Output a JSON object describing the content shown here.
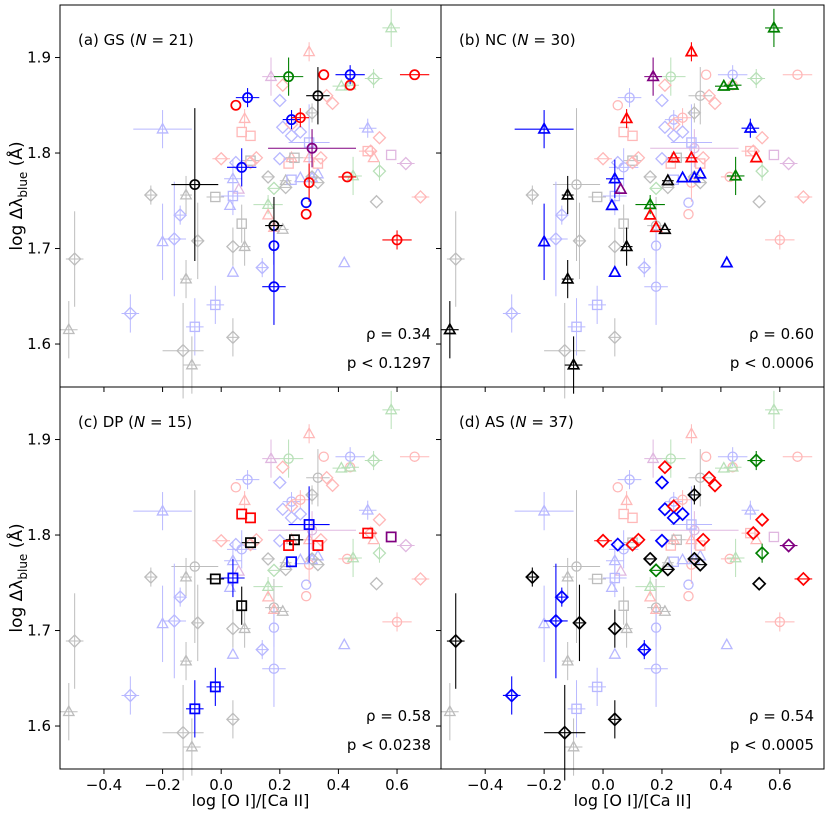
{
  "figure": {
    "xlabel": "log [O I]/[Ca II]",
    "ylabel_main": "log Δλ",
    "ylabel_sub": "blue",
    "ylabel_unit": "(Å)",
    "xlim": [
      -0.55,
      0.75
    ],
    "ylim": [
      1.555,
      1.955
    ],
    "xticks": [
      -0.4,
      -0.2,
      0.0,
      0.2,
      0.4,
      0.6
    ],
    "xtick_labels": [
      "−0.4",
      "−0.2",
      "0.0",
      "0.2",
      "0.4",
      "0.6"
    ],
    "yticks": [
      1.6,
      1.7,
      1.8,
      1.9
    ],
    "ytick_labels": [
      "1.6",
      "1.7",
      "1.8",
      "1.9"
    ],
    "colors": {
      "black": "#000000",
      "blue": "#0000ff",
      "red": "#ff0000",
      "green": "#008000",
      "purple": "#800080",
      "faded_gray": "#bdbdbd",
      "faded_blue": "#b8b8ff",
      "faded_red": "#ffb8b8",
      "faded_green": "#b8e0b8",
      "faded_purple": "#e0b8e0"
    }
  },
  "chart_data": [
    {
      "panel": "a",
      "type": "scatter",
      "title_prefix": "(a)  GS (",
      "N": "21",
      "marker": "circle",
      "rho_label": "ρ = 0.34",
      "p_label": "p < 0.1297",
      "points": [
        {
          "x": -0.09,
          "y": 1.767,
          "c": "black",
          "xe": 0.08,
          "ye": 0.08
        },
        {
          "x": 0.05,
          "y": 1.85,
          "c": "red",
          "xe": 0.0,
          "ye": 0.0
        },
        {
          "x": 0.09,
          "y": 1.858,
          "c": "blue",
          "xe": 0.04,
          "ye": 0.01
        },
        {
          "x": 0.07,
          "y": 1.785,
          "c": "blue",
          "xe": 0.05,
          "ye": 0.02
        },
        {
          "x": 0.23,
          "y": 1.88,
          "c": "green",
          "xe": 0.05,
          "ye": 0.02
        },
        {
          "x": 0.35,
          "y": 1.882,
          "c": "red",
          "xe": 0.0,
          "ye": 0.0
        },
        {
          "x": 0.33,
          "y": 1.86,
          "c": "black",
          "xe": 0.04,
          "ye": 0.03
        },
        {
          "x": 0.44,
          "y": 1.882,
          "c": "blue",
          "xe": 0.05,
          "ye": 0.01
        },
        {
          "x": 0.66,
          "y": 1.882,
          "c": "red",
          "xe": 0.05,
          "ye": 0.0
        },
        {
          "x": 0.44,
          "y": 1.871,
          "c": "red",
          "xe": 0.0,
          "ye": 0.0
        },
        {
          "x": 0.24,
          "y": 1.835,
          "c": "blue",
          "xe": 0.03,
          "ye": 0.01
        },
        {
          "x": 0.27,
          "y": 1.837,
          "c": "red",
          "xe": 0.03,
          "ye": 0.01
        },
        {
          "x": 0.31,
          "y": 1.805,
          "c": "purple",
          "xe": 0.15,
          "ye": 0.02
        },
        {
          "x": 0.3,
          "y": 1.769,
          "c": "red",
          "xe": 0.0,
          "ye": 0.02
        },
        {
          "x": 0.29,
          "y": 1.748,
          "c": "blue",
          "xe": 0.0,
          "ye": 0.0
        },
        {
          "x": 0.29,
          "y": 1.736,
          "c": "red",
          "xe": 0.0,
          "ye": 0.0
        },
        {
          "x": 0.43,
          "y": 1.775,
          "c": "red",
          "xe": 0.03,
          "ye": 0.0
        },
        {
          "x": 0.18,
          "y": 1.724,
          "c": "black",
          "xe": 0.03,
          "ye": 0.03
        },
        {
          "x": 0.18,
          "y": 1.703,
          "c": "blue",
          "xe": 0.0,
          "ye": 0.02
        },
        {
          "x": 0.18,
          "y": 1.66,
          "c": "blue",
          "xe": 0.04,
          "ye": 0.04
        },
        {
          "x": 0.6,
          "y": 1.709,
          "c": "red",
          "xe": 0.05,
          "ye": 0.01
        }
      ]
    },
    {
      "panel": "b",
      "type": "scatter",
      "title_prefix": "(b)  NC (",
      "N": "30",
      "marker": "triangle",
      "rho_label": "ρ = 0.60",
      "p_label": "p < 0.0006",
      "points": [
        {
          "x": 0.58,
          "y": 1.931,
          "c": "green",
          "xe": 0.03,
          "ye": 0.02
        },
        {
          "x": 0.3,
          "y": 1.906,
          "c": "red",
          "xe": 0.0,
          "ye": 0.01
        },
        {
          "x": 0.17,
          "y": 1.88,
          "c": "purple",
          "xe": 0.03,
          "ye": 0.02
        },
        {
          "x": 0.41,
          "y": 1.87,
          "c": "green",
          "xe": 0.03,
          "ye": 0.0
        },
        {
          "x": 0.44,
          "y": 1.871,
          "c": "green",
          "xe": 0.03,
          "ye": 0.0
        },
        {
          "x": -0.2,
          "y": 1.825,
          "c": "blue",
          "xe": 0.1,
          "ye": 0.02
        },
        {
          "x": 0.08,
          "y": 1.836,
          "c": "red",
          "xe": 0.0,
          "ye": 0.01
        },
        {
          "x": 0.5,
          "y": 1.826,
          "c": "blue",
          "xe": 0.03,
          "ye": 0.01
        },
        {
          "x": 0.24,
          "y": 1.795,
          "c": "red",
          "xe": 0.02,
          "ye": 0.0
        },
        {
          "x": 0.3,
          "y": 1.795,
          "c": "red",
          "xe": 0.02,
          "ye": 0.0
        },
        {
          "x": 0.52,
          "y": 1.795,
          "c": "red",
          "xe": 0.0,
          "ye": 0.0
        },
        {
          "x": 0.04,
          "y": 1.773,
          "c": "blue",
          "xe": 0.03,
          "ye": 0.02
        },
        {
          "x": 0.06,
          "y": 1.762,
          "c": "purple",
          "xe": 0.0,
          "ye": 0.0
        },
        {
          "x": 0.22,
          "y": 1.771,
          "c": "black",
          "xe": 0.02,
          "ye": 0.0
        },
        {
          "x": 0.27,
          "y": 1.774,
          "c": "blue",
          "xe": 0.0,
          "ye": 0.0
        },
        {
          "x": 0.31,
          "y": 1.774,
          "c": "blue",
          "xe": 0.0,
          "ye": 0.0
        },
        {
          "x": 0.33,
          "y": 1.778,
          "c": "blue",
          "xe": 0.0,
          "ye": 0.0
        },
        {
          "x": 0.45,
          "y": 1.776,
          "c": "green",
          "xe": 0.03,
          "ye": 0.02
        },
        {
          "x": -0.12,
          "y": 1.756,
          "c": "black",
          "xe": 0.02,
          "ye": 0.02
        },
        {
          "x": 0.16,
          "y": 1.746,
          "c": "green",
          "xe": 0.05,
          "ye": 0.01
        },
        {
          "x": 0.16,
          "y": 1.735,
          "c": "red",
          "xe": 0.0,
          "ye": 0.0
        },
        {
          "x": 0.03,
          "y": 1.745,
          "c": "blue",
          "xe": 0.0,
          "ye": 0.0
        },
        {
          "x": 0.18,
          "y": 1.722,
          "c": "red",
          "xe": 0.0,
          "ye": 0.0
        },
        {
          "x": 0.21,
          "y": 1.72,
          "c": "black",
          "xe": 0.02,
          "ye": 0.0
        },
        {
          "x": -0.2,
          "y": 1.707,
          "c": "blue",
          "xe": 0.0,
          "ye": 0.04
        },
        {
          "x": 0.08,
          "y": 1.702,
          "c": "black",
          "xe": 0.02,
          "ye": 0.02
        },
        {
          "x": 0.04,
          "y": 1.675,
          "c": "blue",
          "xe": 0.0,
          "ye": 0.0
        },
        {
          "x": -0.12,
          "y": 1.668,
          "c": "black",
          "xe": 0.02,
          "ye": 0.02
        },
        {
          "x": 0.42,
          "y": 1.685,
          "c": "blue",
          "xe": 0.0,
          "ye": 0.0
        },
        {
          "x": -0.52,
          "y": 1.615,
          "c": "black",
          "xe": 0.03,
          "ye": 0.03
        },
        {
          "x": -0.1,
          "y": 1.578,
          "c": "black",
          "xe": 0.03,
          "ye": 0.03
        }
      ]
    },
    {
      "panel": "c",
      "type": "scatter",
      "title_prefix": "(c)  DP (",
      "N": "15",
      "marker": "square",
      "rho_label": "ρ = 0.58",
      "p_label": "p < 0.0238",
      "points": [
        {
          "x": 0.07,
          "y": 1.822,
          "c": "red",
          "xe": 0.0,
          "ye": 0.0
        },
        {
          "x": 0.1,
          "y": 1.818,
          "c": "red",
          "xe": 0.0,
          "ye": 0.0
        },
        {
          "x": 0.3,
          "y": 1.811,
          "c": "blue",
          "xe": 0.07,
          "ye": 0.04
        },
        {
          "x": 0.5,
          "y": 1.802,
          "c": "red",
          "xe": 0.03,
          "ye": 0.0
        },
        {
          "x": 0.58,
          "y": 1.798,
          "c": "purple",
          "xe": 0.0,
          "ye": 0.0
        },
        {
          "x": 0.1,
          "y": 1.792,
          "c": "black",
          "xe": 0.03,
          "ye": 0.0
        },
        {
          "x": 0.25,
          "y": 1.795,
          "c": "black",
          "xe": 0.03,
          "ye": 0.0
        },
        {
          "x": 0.23,
          "y": 1.789,
          "c": "red",
          "xe": 0.0,
          "ye": 0.0
        },
        {
          "x": 0.33,
          "y": 1.789,
          "c": "red",
          "xe": 0.0,
          "ye": 0.0
        },
        {
          "x": 0.24,
          "y": 1.772,
          "c": "blue",
          "xe": 0.0,
          "ye": 0.0
        },
        {
          "x": -0.02,
          "y": 1.754,
          "c": "black",
          "xe": 0.03,
          "ye": 0.0
        },
        {
          "x": 0.04,
          "y": 1.755,
          "c": "blue",
          "xe": 0.04,
          "ye": 0.02
        },
        {
          "x": 0.07,
          "y": 1.726,
          "c": "black",
          "xe": 0.0,
          "ye": 0.02
        },
        {
          "x": -0.02,
          "y": 1.641,
          "c": "blue",
          "xe": 0.03,
          "ye": 0.02
        },
        {
          "x": -0.09,
          "y": 1.618,
          "c": "blue",
          "xe": 0.03,
          "ye": 0.03
        }
      ]
    },
    {
      "panel": "d",
      "type": "scatter",
      "title_prefix": "(d)  AS (",
      "N": "37",
      "marker": "diamond",
      "rho_label": "ρ = 0.54",
      "p_label": "p < 0.0005",
      "points": [
        {
          "x": 0.52,
          "y": 1.878,
          "c": "green",
          "xe": 0.03,
          "ye": 0.01
        },
        {
          "x": 0.21,
          "y": 1.871,
          "c": "red",
          "xe": 0.0,
          "ye": 0.0
        },
        {
          "x": 0.2,
          "y": 1.855,
          "c": "blue",
          "xe": 0.0,
          "ye": 0.0
        },
        {
          "x": 0.36,
          "y": 1.86,
          "c": "red",
          "xe": 0.0,
          "ye": 0.0
        },
        {
          "x": 0.38,
          "y": 1.852,
          "c": "red",
          "xe": 0.0,
          "ye": 0.0
        },
        {
          "x": 0.31,
          "y": 1.842,
          "c": "black",
          "xe": 0.02,
          "ye": 0.01
        },
        {
          "x": 0.21,
          "y": 1.827,
          "c": "blue",
          "xe": 0.0,
          "ye": 0.0
        },
        {
          "x": 0.24,
          "y": 1.83,
          "c": "red",
          "xe": 0.0,
          "ye": 0.0
        },
        {
          "x": 0.24,
          "y": 1.818,
          "c": "blue",
          "xe": 0.0,
          "ye": 0.0
        },
        {
          "x": 0.27,
          "y": 1.822,
          "c": "blue",
          "xe": 0.0,
          "ye": 0.0
        },
        {
          "x": 0.54,
          "y": 1.816,
          "c": "red",
          "xe": 0.0,
          "ye": 0.0
        },
        {
          "x": 0.51,
          "y": 1.802,
          "c": "red",
          "xe": 0.0,
          "ye": 0.0
        },
        {
          "x": 0.0,
          "y": 1.794,
          "c": "red",
          "xe": 0.03,
          "ye": 0.0
        },
        {
          "x": 0.05,
          "y": 1.79,
          "c": "blue",
          "xe": 0.0,
          "ye": 0.0
        },
        {
          "x": 0.1,
          "y": 1.79,
          "c": "red",
          "xe": 0.0,
          "ye": 0.0
        },
        {
          "x": 0.12,
          "y": 1.795,
          "c": "red",
          "xe": 0.0,
          "ye": 0.0
        },
        {
          "x": 0.2,
          "y": 1.794,
          "c": "blue",
          "xe": 0.0,
          "ye": 0.0
        },
        {
          "x": 0.34,
          "y": 1.795,
          "c": "red",
          "xe": 0.0,
          "ye": 0.0
        },
        {
          "x": 0.63,
          "y": 1.789,
          "c": "purple",
          "xe": 0.03,
          "ye": 0.0
        },
        {
          "x": 0.54,
          "y": 1.781,
          "c": "green",
          "xe": 0.0,
          "ye": 0.01
        },
        {
          "x": 0.16,
          "y": 1.775,
          "c": "black",
          "xe": 0.02,
          "ye": 0.0
        },
        {
          "x": 0.18,
          "y": 1.763,
          "c": "green",
          "xe": 0.02,
          "ye": 0.0
        },
        {
          "x": 0.22,
          "y": 1.764,
          "c": "black",
          "xe": 0.02,
          "ye": 0.0
        },
        {
          "x": 0.31,
          "y": 1.775,
          "c": "black",
          "xe": 0.02,
          "ye": 0.0
        },
        {
          "x": 0.33,
          "y": 1.769,
          "c": "black",
          "xe": 0.02,
          "ye": 0.0
        },
        {
          "x": 0.68,
          "y": 1.754,
          "c": "red",
          "xe": 0.03,
          "ye": 0.0
        },
        {
          "x": -0.24,
          "y": 1.756,
          "c": "black",
          "xe": 0.02,
          "ye": 0.01
        },
        {
          "x": 0.53,
          "y": 1.749,
          "c": "black",
          "xe": 0.0,
          "ye": 0.0
        },
        {
          "x": -0.14,
          "y": 1.735,
          "c": "blue",
          "xe": 0.02,
          "ye": 0.01
        },
        {
          "x": -0.16,
          "y": 1.71,
          "c": "blue",
          "xe": 0.04,
          "ye": 0.06
        },
        {
          "x": -0.08,
          "y": 1.708,
          "c": "black",
          "xe": 0.02,
          "ye": 0.04
        },
        {
          "x": 0.04,
          "y": 1.702,
          "c": "black",
          "xe": 0.0,
          "ye": 0.02
        },
        {
          "x": 0.14,
          "y": 1.68,
          "c": "blue",
          "xe": 0.02,
          "ye": 0.01
        },
        {
          "x": -0.5,
          "y": 1.689,
          "c": "black",
          "xe": 0.03,
          "ye": 0.05
        },
        {
          "x": -0.31,
          "y": 1.632,
          "c": "blue",
          "xe": 0.03,
          "ye": 0.02
        },
        {
          "x": 0.04,
          "y": 1.607,
          "c": "black",
          "xe": 0.02,
          "ye": 0.02
        },
        {
          "x": -0.13,
          "y": 1.593,
          "c": "black",
          "xe": 0.07,
          "ye": 0.05
        }
      ]
    }
  ]
}
